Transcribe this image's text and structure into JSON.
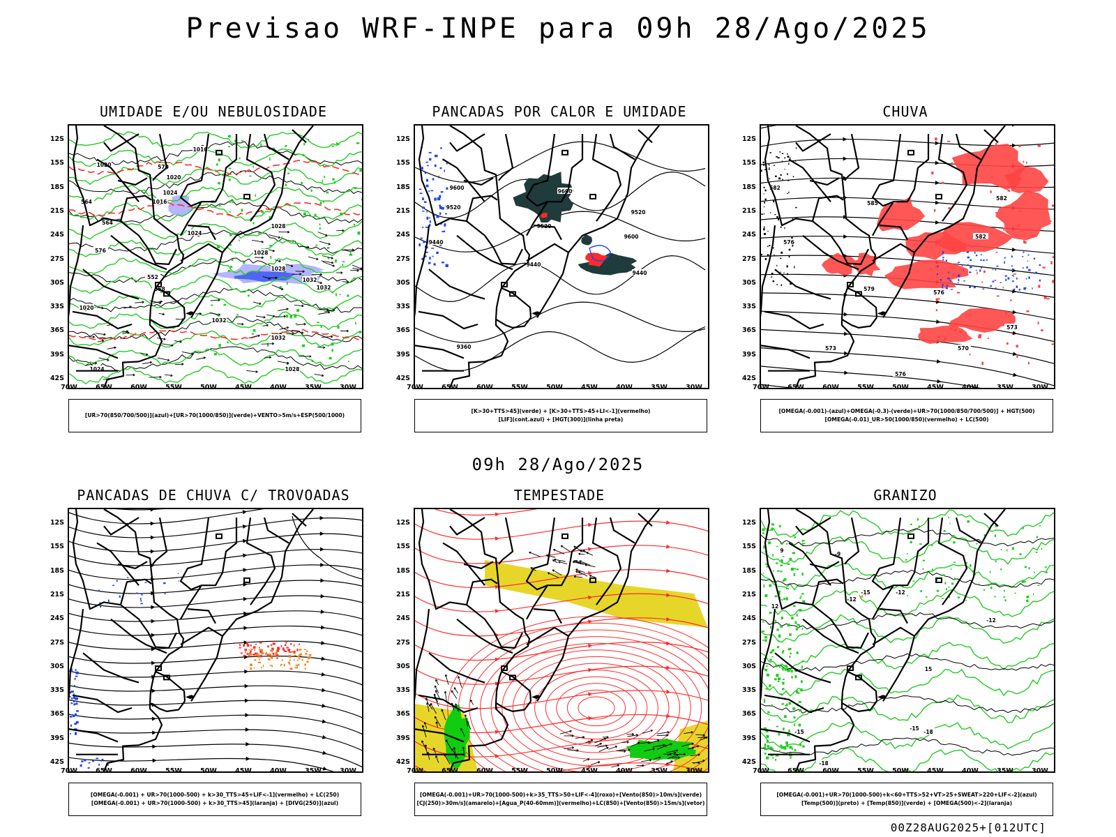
{
  "title": "Previsao WRF-INPE  para 09h 28/Ago/2025",
  "mid_date": "09h 28/Ago/2025",
  "run_stamp": "00Z28AUG2025+[012UTC]",
  "lat_labels": [
    "12S",
    "15S",
    "18S",
    "21S",
    "24S",
    "27S",
    "30S",
    "33S",
    "36S",
    "39S",
    "42S"
  ],
  "lon_labels": [
    "70W",
    "65W",
    "60W",
    "55W",
    "50W",
    "45W",
    "40W",
    "35W",
    "30W"
  ],
  "panels": [
    {
      "id": "umidade",
      "title": "UMIDADE E/OU NEBULOSIDADE",
      "legend": [
        "[UR>70(850/700/500)](azul)+[UR>70(1000/850)](verde)+VENTO>5m/s+ESP(500/1000)"
      ],
      "contour_labels": [
        "1016",
        "1020",
        "1020",
        "1024",
        "1024",
        "1028",
        "1028",
        "1032",
        "1032",
        "1032",
        "1032",
        "1028",
        "1024",
        "1020",
        "1016",
        "1028",
        "576",
        "564",
        "558",
        "552",
        "570",
        "564"
      ]
    },
    {
      "id": "pancadas-calor",
      "title": "PANCADAS POR CALOR E UMIDADE",
      "legend": [
        "[K>30+TTS>45](verde) + [K>30+TTS>45+LI<-1](vermelho)",
        "[LIF](cont.azul) + [HGT(300)](linha preta)"
      ],
      "contour_labels": [
        "9600",
        "9600",
        "9520",
        "9520",
        "9600",
        "9520",
        "9440",
        "9440",
        "9440",
        "9360"
      ]
    },
    {
      "id": "chuva",
      "title": "CHUVA",
      "legend": [
        "[OMEGA(-0.001)-(azul)+OMEGA(-0.3)-(verde)+UR>70(1000/850/700/500)] + HGT(500)",
        "[OMEGA(-0.01)_UR>50(1000/850)(vermelho) + LC(500)"
      ],
      "contour_labels": [
        "582",
        "585",
        "582",
        "576",
        "579",
        "576",
        "573",
        "573",
        "570",
        "576",
        "582"
      ]
    },
    {
      "id": "trovoadas",
      "title": "PANCADAS DE CHUVA C/ TROVOADAS",
      "legend": [
        "[OMEGA(-0.001) + UR>70(1000-500) + k>30_TTS>45+LIF<-1](vermelho) + LC(250)",
        "[OMEGA(-0.001) + UR>70(1000-500) + k>30_TTS>45](laranja) + [DIVG(250)](azul)"
      ],
      "contour_labels": []
    },
    {
      "id": "tempestade",
      "title": "TEMPESTADE",
      "legend": [
        "[OMEGA(-0.001)+UR>70(1000-500)+k>35_TTS>50+LIF<-4](roxo)+[Vento(850)>10m/s](verde)",
        "[CJ(250)>30m/s](amarelo)+[Agua_P(40-60mm)](vermelho)+LC(850)+[Vento(850)>15m/s](vetor)"
      ],
      "contour_labels": []
    },
    {
      "id": "granizo",
      "title": "GRANIZO",
      "legend": [
        "[OMEGA(-0.001)+UR>70(1000-500)+k<60+TTS>52+VT>25+SWEAT>220+LIF<-2](azul)",
        "[Temp(500)](preto) + [Temp(850)](verde) + [OMEGA(500)<-2](laranja)"
      ],
      "contour_labels": [
        "-9",
        "-12",
        "-12",
        "-12",
        "-15",
        "-15",
        "-15",
        "-18",
        "-18",
        "15",
        "12",
        "9"
      ]
    }
  ],
  "colors": {
    "black": "#000000",
    "green": "#22cc22",
    "blue": "#2244ee",
    "lightblue": "#b4b4ff",
    "red": "#ff2a2a",
    "salmon": "#ff4444",
    "orange": "#ee8822",
    "yellow": "#e6d62a",
    "darkteal": "#1f3b3b",
    "brightgreen": "#11cc11"
  }
}
